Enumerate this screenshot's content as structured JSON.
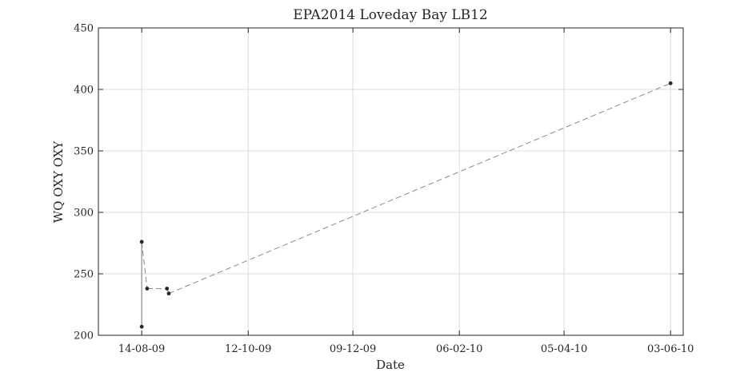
{
  "chart_data": {
    "type": "line",
    "title": "EPA2014 Loveday Bay LB12",
    "xlabel": "Date",
    "ylabel": "WQ OXY OXY",
    "x_tick_labels": [
      "14-08-09",
      "12-10-09",
      "09-12-09",
      "06-02-10",
      "05-04-10",
      "03-06-10"
    ],
    "x_ticks": [
      "2009-08-14",
      "2009-10-12",
      "2009-12-09",
      "2010-02-06",
      "2010-04-05",
      "2010-06-03"
    ],
    "xlim": [
      "2009-07-21",
      "2010-06-10"
    ],
    "ylim": [
      200,
      450
    ],
    "y_ticks": [
      200,
      250,
      300,
      350,
      400,
      450
    ],
    "grid": true,
    "series": [
      {
        "x": [
          "2009-08-14",
          "2009-08-14",
          "2009-08-17",
          "2009-08-28",
          "2009-08-29",
          "2010-06-03"
        ],
        "y": [
          207,
          276,
          238,
          238,
          234,
          405
        ]
      }
    ]
  }
}
